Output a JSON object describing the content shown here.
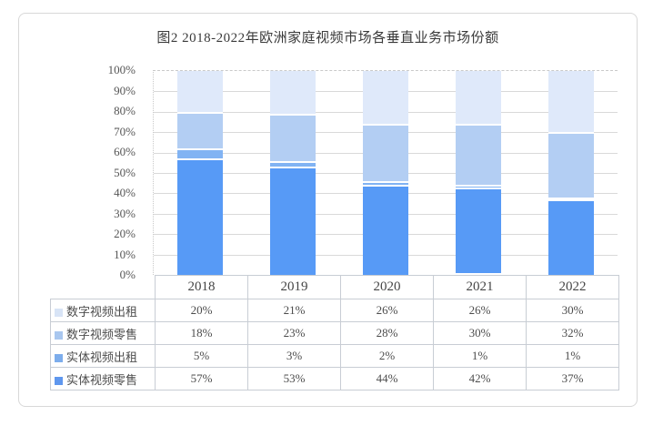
{
  "figure": {
    "title": "图2 2018-2022年欧洲家庭视频市场各垂直业务市场份额"
  },
  "colors": {
    "accent_blue": "#579af6",
    "gridline": "#d9d9d9",
    "dashed_top_line": "#c9c9c9",
    "table_border": "#c8cdd4",
    "outer_border": "#d8d8d8",
    "text": "#4d4d4d"
  },
  "chart_data": {
    "type": "bar",
    "subtype": "stacked-100-percent",
    "title": "图2 2018-2022年欧洲家庭视频市场各垂直业务市场份额",
    "categories": [
      "2018",
      "2019",
      "2020",
      "2021",
      "2022"
    ],
    "series": [
      {
        "name": "数字视频出租",
        "values": [
          20,
          21,
          26,
          26,
          30
        ],
        "color": "#dfe9fa"
      },
      {
        "name": "数字视频零售",
        "values": [
          18,
          23,
          28,
          30,
          32
        ],
        "color": "#b3cef3"
      },
      {
        "name": "实体视频出租",
        "values": [
          5,
          3,
          2,
          1,
          1
        ],
        "color": "#81b3f3"
      },
      {
        "name": "实体视频零售",
        "values": [
          57,
          53,
          44,
          42,
          37
        ],
        "color": "#579af6"
      }
    ],
    "stack_order_note": "series listed top-of-bar to bottom-of-bar",
    "xlabel": "",
    "ylabel": "",
    "ylim": [
      0,
      100
    ],
    "y_ticks": [
      "100%",
      "90%",
      "80%",
      "70%",
      "60%",
      "50%",
      "40%",
      "30%",
      "20%",
      "10%",
      "0%"
    ],
    "grid": true,
    "legend_position": "table-left-column"
  },
  "table": {
    "years": [
      "2018",
      "2019",
      "2020",
      "2021",
      "2022"
    ],
    "rows": [
      {
        "label": "数字视频出租",
        "swatch": "#d8e4f6",
        "values": [
          "20%",
          "21%",
          "26%",
          "26%",
          "30%"
        ]
      },
      {
        "label": "数字视频零售",
        "swatch": "#a9c7ef",
        "values": [
          "18%",
          "23%",
          "28%",
          "30%",
          "32%"
        ]
      },
      {
        "label": "实体视频出租",
        "swatch": "#7dadec",
        "values": [
          "5%",
          "3%",
          "2%",
          "1%",
          "1%"
        ]
      },
      {
        "label": "实体视频零售",
        "swatch": "#5f97ee",
        "values": [
          "57%",
          "53%",
          "44%",
          "42%",
          "37%"
        ]
      }
    ]
  }
}
